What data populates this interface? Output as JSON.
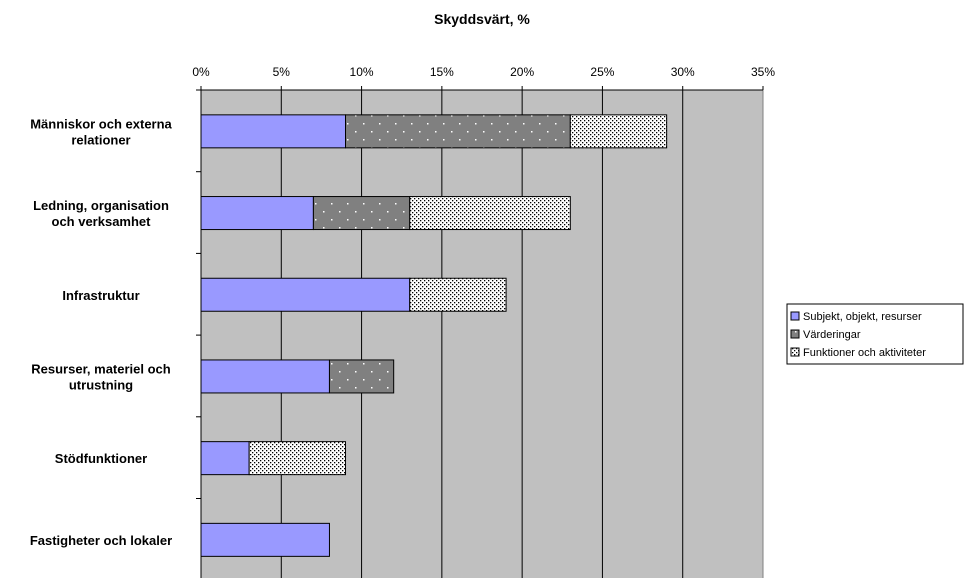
{
  "chart_data": {
    "type": "bar",
    "orientation": "horizontal",
    "stacked": true,
    "title": "Skyddsvärt, %",
    "xlabel": "",
    "ylabel": "",
    "xlim": [
      0,
      35
    ],
    "x_ticks": [
      "0%",
      "5%",
      "10%",
      "15%",
      "20%",
      "25%",
      "30%",
      "35%"
    ],
    "grid": "vertical",
    "legend_position": "right",
    "categories": [
      [
        "Människor och externa",
        "relationer"
      ],
      [
        "Ledning, organisation",
        "och verksamhet"
      ],
      [
        "Infrastruktur"
      ],
      [
        "Resurser, materiel och",
        "utrustning"
      ],
      [
        "Stödfunktioner"
      ],
      [
        "Fastigheter och lokaler"
      ]
    ],
    "series": [
      {
        "name": "Subjekt, objekt, resurser",
        "color": "#9999ff",
        "pattern": "solid",
        "values": [
          9,
          7,
          13,
          8,
          3,
          8
        ]
      },
      {
        "name": "Värderingar",
        "color": "#808080",
        "pattern": "sparse-dots",
        "values": [
          14,
          6,
          0,
          4,
          0,
          0
        ]
      },
      {
        "name": "Funktioner och aktiviteter",
        "color": "#ffffff",
        "pattern": "dense-dots",
        "values": [
          6,
          10,
          6,
          0,
          6,
          0
        ]
      }
    ],
    "plot_background": "#c0c0c0"
  }
}
